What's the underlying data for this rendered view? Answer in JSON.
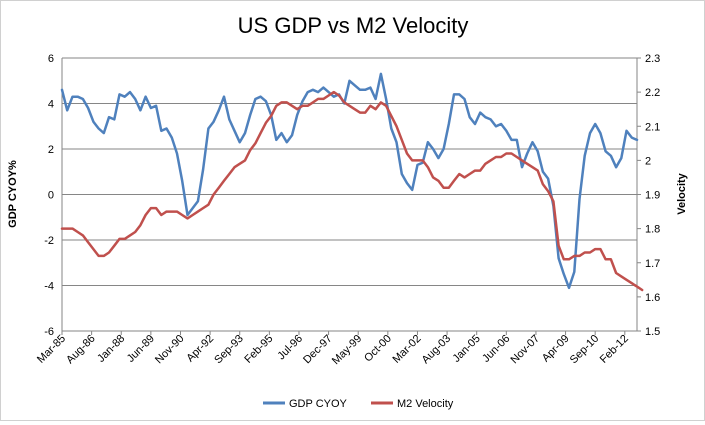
{
  "chart_data": {
    "type": "line",
    "title": "US GDP vs M2 Velocity",
    "ylabel": "GDP CYOY%",
    "y2label": "Velocity",
    "ylim": [
      -6,
      6
    ],
    "y2lim": [
      1.5,
      2.3
    ],
    "yticks": [
      "6",
      "4",
      "2",
      "0",
      "-2",
      "-4",
      "-6"
    ],
    "y2ticks": [
      "2.3",
      "2.2",
      "2.1",
      "2",
      "1.9",
      "1.8",
      "1.7",
      "1.6",
      "1.5"
    ],
    "xticks": [
      "Mar-85",
      "Aug-86",
      "Jan-88",
      "Jun-89",
      "Nov-90",
      "Apr-92",
      "Sep-93",
      "Feb-95",
      "Jul-96",
      "Dec-97",
      "May-99",
      "Oct-00",
      "Mar-02",
      "Aug-03",
      "Jan-05",
      "Jun-06",
      "Nov-07",
      "Apr-09",
      "Sep-10",
      "Feb-12"
    ],
    "grid": "horizontal",
    "legend": "bottom",
    "x_start": "Mar-85",
    "x_step": "quarter",
    "series": [
      {
        "name": "GDP CYOY",
        "axis": "left",
        "color": "#4f81bd",
        "values": [
          4.6,
          3.7,
          4.3,
          4.3,
          4.2,
          3.8,
          3.2,
          2.9,
          2.7,
          3.4,
          3.3,
          4.4,
          4.3,
          4.5,
          4.2,
          3.7,
          4.3,
          3.8,
          3.9,
          2.8,
          2.9,
          2.5,
          1.8,
          0.6,
          -0.9,
          -0.6,
          -0.3,
          1.1,
          2.9,
          3.2,
          3.7,
          4.3,
          3.3,
          2.8,
          2.3,
          2.7,
          3.5,
          4.2,
          4.3,
          4.1,
          3.5,
          2.4,
          2.7,
          2.3,
          2.6,
          3.5,
          4.1,
          4.5,
          4.6,
          4.5,
          4.7,
          4.5,
          4.3,
          4.4,
          4.0,
          5.0,
          4.8,
          4.6,
          4.6,
          4.7,
          4.2,
          5.3,
          4.2,
          2.9,
          2.3,
          0.9,
          0.5,
          0.2,
          1.3,
          1.4,
          2.3,
          2.0,
          1.6,
          2.0,
          3.1,
          4.4,
          4.4,
          4.2,
          3.4,
          3.1,
          3.6,
          3.4,
          3.3,
          3.0,
          3.1,
          2.8,
          2.4,
          2.4,
          1.2,
          1.8,
          2.3,
          1.9,
          1.0,
          0.7,
          -0.5,
          -2.8,
          -3.5,
          -4.1,
          -3.4,
          -0.2,
          1.7,
          2.7,
          3.1,
          2.7,
          1.9,
          1.7,
          1.2,
          1.6,
          2.8,
          2.5,
          2.4
        ]
      },
      {
        "name": "M2 Velocity",
        "axis": "right",
        "color": "#c0504d",
        "values": [
          1.8,
          1.8,
          1.8,
          1.79,
          1.78,
          1.76,
          1.74,
          1.72,
          1.72,
          1.73,
          1.75,
          1.77,
          1.77,
          1.78,
          1.79,
          1.81,
          1.84,
          1.86,
          1.86,
          1.84,
          1.85,
          1.85,
          1.85,
          1.84,
          1.83,
          1.84,
          1.85,
          1.86,
          1.87,
          1.9,
          1.92,
          1.94,
          1.96,
          1.98,
          1.99,
          2.0,
          2.03,
          2.05,
          2.08,
          2.11,
          2.13,
          2.16,
          2.17,
          2.17,
          2.16,
          2.15,
          2.16,
          2.16,
          2.17,
          2.18,
          2.18,
          2.19,
          2.2,
          2.19,
          2.17,
          2.16,
          2.15,
          2.14,
          2.14,
          2.16,
          2.15,
          2.17,
          2.16,
          2.13,
          2.1,
          2.06,
          2.02,
          2.0,
          2.0,
          2.0,
          1.98,
          1.95,
          1.94,
          1.92,
          1.92,
          1.94,
          1.96,
          1.95,
          1.96,
          1.97,
          1.97,
          1.99,
          2.0,
          2.01,
          2.01,
          2.02,
          2.02,
          2.01,
          2.0,
          1.99,
          1.98,
          1.97,
          1.93,
          1.91,
          1.88,
          1.75,
          1.71,
          1.71,
          1.72,
          1.72,
          1.73,
          1.73,
          1.74,
          1.74,
          1.71,
          1.71,
          1.67,
          1.66,
          1.65,
          1.64,
          1.63,
          1.62
        ]
      }
    ]
  }
}
